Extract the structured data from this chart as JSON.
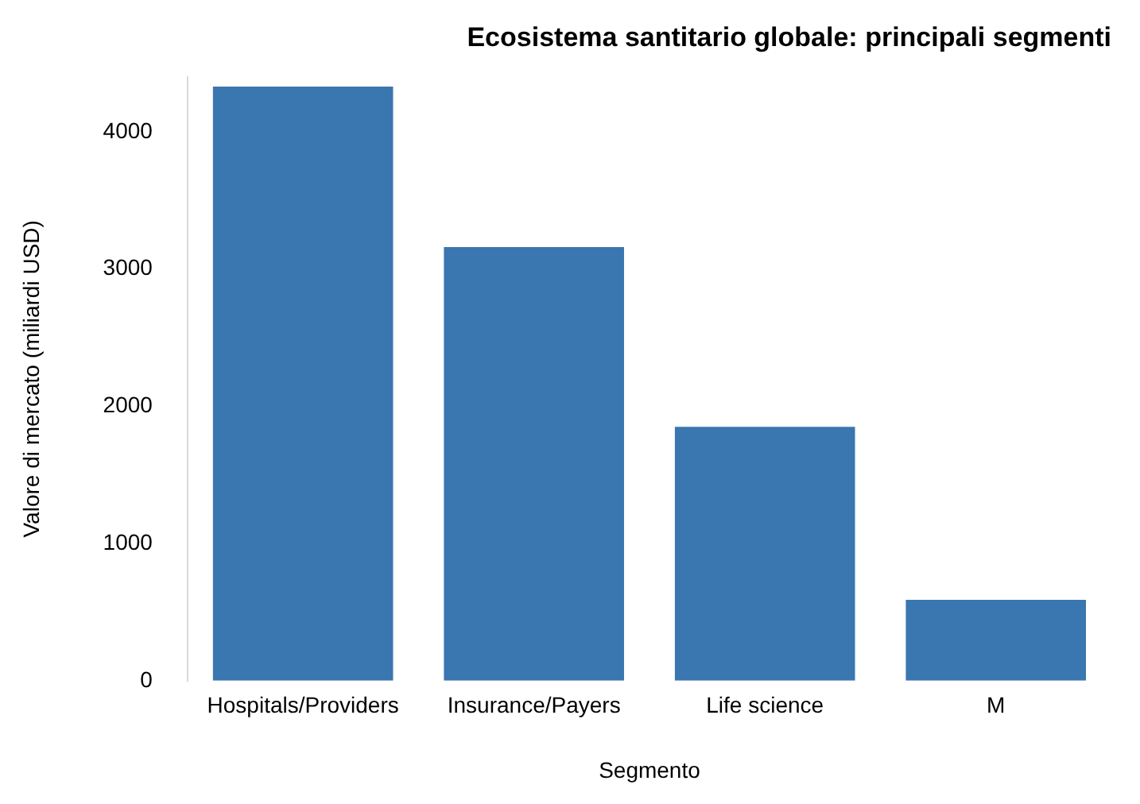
{
  "chart_data": {
    "type": "bar",
    "title": "Ecosistema santitario globale: principali segmenti",
    "xlabel": "Segmento",
    "ylabel": "Valore di mercato (miliardi USD)",
    "categories": [
      "Hospitals/Providers",
      "Insurance/Payers",
      "Life science",
      "M"
    ],
    "series": [
      {
        "color": "#3a76af",
        "values": [
          4330,
          3160,
          1850,
          590
        ]
      }
    ],
    "ylim": [
      0,
      4400
    ],
    "yticks": [
      0,
      1000,
      2000,
      3000,
      4000
    ],
    "grid": false,
    "legend": false
  }
}
